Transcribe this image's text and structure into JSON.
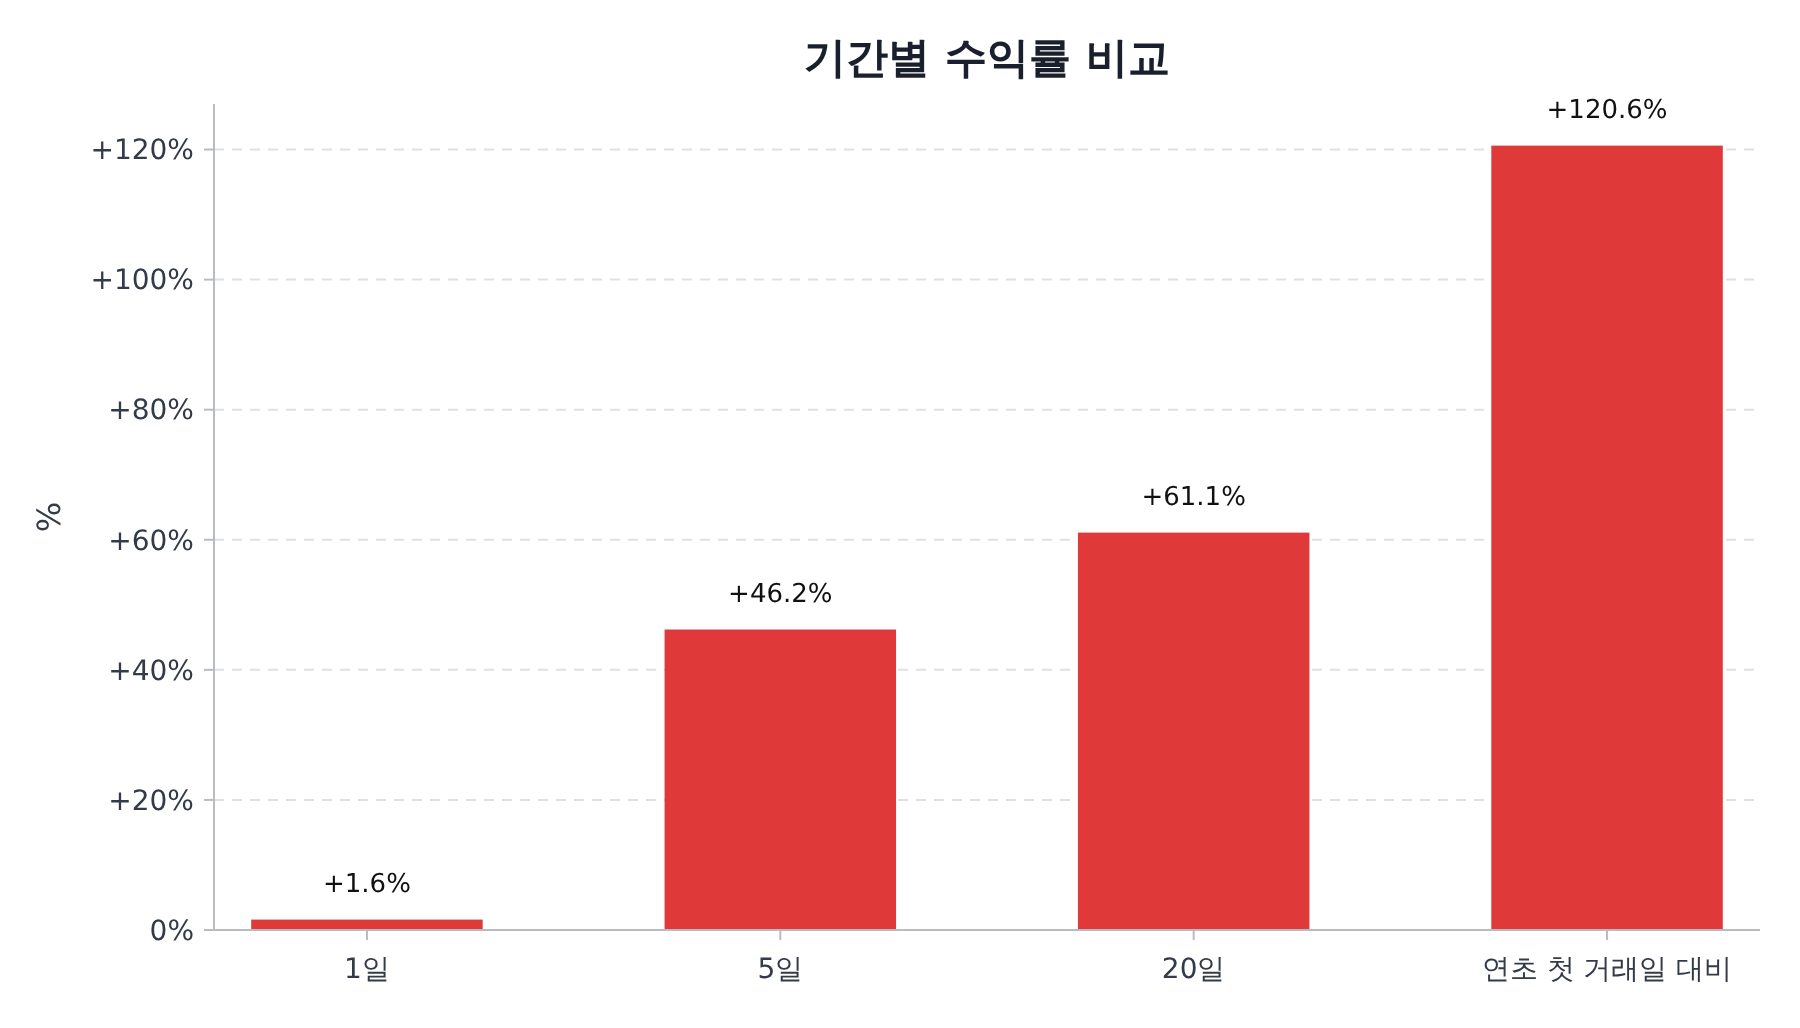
{
  "chart_data": {
    "type": "bar",
    "title": "기간별 수익률 비교",
    "ylabel": "%",
    "categories": [
      "1일",
      "5일",
      "20일",
      "연초 첫 거래일 대비"
    ],
    "values": [
      1.6,
      46.2,
      61.1,
      120.6
    ],
    "value_labels": [
      "+1.6%",
      "+46.2%",
      "+61.1%",
      "+120.6%"
    ],
    "color": "#df393a",
    "ylim": [
      0,
      127
    ],
    "yticks": [
      {
        "value": 0,
        "label": "0%"
      },
      {
        "value": 20,
        "label": "+20%"
      },
      {
        "value": 40,
        "label": "+40%"
      },
      {
        "value": 60,
        "label": "+60%"
      },
      {
        "value": 80,
        "label": "+80%"
      },
      {
        "value": 100,
        "label": "+100%"
      },
      {
        "value": 120,
        "label": "+120%"
      }
    ],
    "grid": "y"
  }
}
